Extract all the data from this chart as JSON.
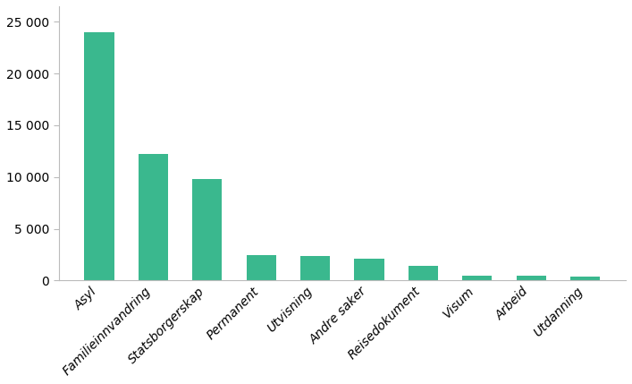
{
  "categories": [
    "Asyl",
    "Familieinnvandring",
    "Statsborgerskap",
    "Permanent",
    "Utvisning",
    "Andre saker",
    "Reisedokument",
    "Visum",
    "Arbeid",
    "Utdanning"
  ],
  "values": [
    23990,
    12225,
    9800,
    2419,
    2374,
    2115,
    1400,
    491,
    489,
    378
  ],
  "bar_color": "#3ab88e",
  "ylim": [
    0,
    26500
  ],
  "yticks": [
    0,
    5000,
    10000,
    15000,
    20000,
    25000
  ],
  "ytick_labels": [
    "0",
    "5 000",
    "10 000",
    "15 000",
    "20 000",
    "25 000"
  ],
  "background_color": "#ffffff",
  "tick_label_fontsize": 10,
  "bar_width": 0.55,
  "figsize": [
    7.07,
    4.29
  ],
  "dpi": 100
}
